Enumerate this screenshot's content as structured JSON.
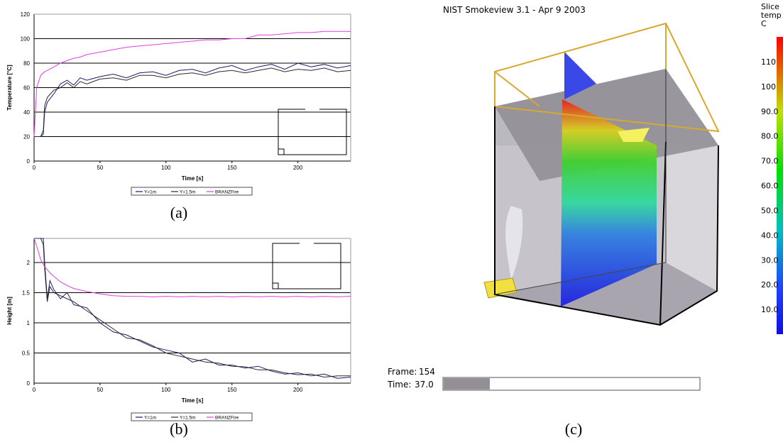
{
  "chart_data": [
    {
      "type": "line",
      "caption": "(a)",
      "y_label": "Temperature [°C]",
      "x_label": "Time [s]",
      "xlim": [
        0,
        240
      ],
      "xticks": [
        0,
        50,
        100,
        150,
        200
      ],
      "ylim": [
        0,
        120
      ],
      "yticks": [
        0,
        20,
        40,
        60,
        80,
        100,
        120
      ],
      "grid": true,
      "x": [
        0,
        2,
        5,
        7,
        8,
        10,
        15,
        20,
        25,
        30,
        35,
        40,
        50,
        60,
        70,
        80,
        90,
        100,
        110,
        120,
        130,
        140,
        150,
        160,
        170,
        180,
        190,
        200,
        210,
        220,
        230,
        240
      ],
      "series": [
        {
          "name": "Y=1m",
          "color": "#1c1c6a",
          "values": [
            20,
            20,
            20,
            22,
            40,
            48,
            55,
            63,
            66,
            62,
            68,
            66,
            69,
            71,
            68,
            72,
            73,
            70,
            74,
            75,
            72,
            76,
            78,
            74,
            77,
            79,
            75,
            80,
            77,
            79,
            76,
            78
          ]
        },
        {
          "name": "Y=1.5m",
          "color": "#2a2a2a",
          "values": [
            20,
            20,
            20,
            25,
            45,
            52,
            58,
            60,
            64,
            60,
            65,
            63,
            67,
            68,
            66,
            70,
            70,
            68,
            71,
            72,
            70,
            73,
            74,
            72,
            74,
            76,
            73,
            75,
            74,
            76,
            73,
            74
          ]
        },
        {
          "name": "BRANZFire",
          "color": "#e03ee0",
          "values": [
            20,
            60,
            70,
            72,
            73,
            74,
            77,
            80,
            82,
            84,
            85,
            87,
            89,
            91,
            93,
            94,
            95,
            96,
            97,
            98,
            99,
            99,
            100,
            100,
            103,
            103,
            104,
            105,
            105,
            106,
            106,
            106
          ]
        }
      ]
    },
    {
      "type": "line",
      "caption": "(b)",
      "y_label": "Height [m]",
      "x_label": "Time [s]",
      "xlim": [
        0,
        240
      ],
      "xticks": [
        0,
        50,
        100,
        150,
        200
      ],
      "ylim": [
        0,
        2.4
      ],
      "yticks": [
        0,
        0.5,
        1,
        1.5,
        2
      ],
      "grid": true,
      "x": [
        0,
        3,
        5,
        7,
        8,
        10,
        12,
        15,
        20,
        25,
        30,
        40,
        50,
        60,
        70,
        80,
        90,
        100,
        110,
        120,
        130,
        140,
        150,
        160,
        170,
        180,
        190,
        200,
        210,
        220,
        230,
        240
      ],
      "series": [
        {
          "name": "Y=1m",
          "color": "#1c1c6a",
          "values": [
            2.4,
            2.4,
            2.4,
            2.4,
            2.0,
            1.4,
            1.7,
            1.55,
            1.4,
            1.5,
            1.3,
            1.25,
            1.0,
            0.85,
            0.8,
            0.7,
            0.6,
            0.55,
            0.5,
            0.35,
            0.4,
            0.3,
            0.3,
            0.25,
            0.28,
            0.2,
            0.15,
            0.17,
            0.12,
            0.15,
            0.08,
            0.1
          ]
        },
        {
          "name": "Y=1.5m",
          "color": "#2a2a2a",
          "values": [
            2.4,
            2.4,
            2.4,
            2.3,
            1.9,
            1.35,
            1.6,
            1.5,
            1.45,
            1.4,
            1.35,
            1.2,
            1.05,
            0.9,
            0.75,
            0.72,
            0.62,
            0.5,
            0.45,
            0.4,
            0.35,
            0.33,
            0.28,
            0.27,
            0.22,
            0.22,
            0.17,
            0.14,
            0.15,
            0.1,
            0.12,
            0.12
          ]
        },
        {
          "name": "BRANZFire",
          "color": "#e03ee0",
          "values": [
            2.4,
            2.2,
            2.05,
            1.97,
            1.93,
            1.88,
            1.83,
            1.77,
            1.68,
            1.62,
            1.57,
            1.52,
            1.48,
            1.45,
            1.44,
            1.44,
            1.43,
            1.44,
            1.43,
            1.44,
            1.43,
            1.44,
            1.43,
            1.44,
            1.43,
            1.44,
            1.43,
            1.44,
            1.43,
            1.44,
            1.43,
            1.44
          ]
        }
      ]
    }
  ],
  "smokeview": {
    "title": "NIST Smokeview 3.1 - Apr  9 2003",
    "caption": "(c)",
    "colorbar_title": [
      "Slice",
      "temp",
      "C"
    ],
    "clim": [
      0,
      120
    ],
    "colorbar_ticks": [
      {
        "value": 110,
        "label": "110"
      },
      {
        "value": 100,
        "label": "100"
      },
      {
        "value": 90,
        "label": "90.0"
      },
      {
        "value": 80,
        "label": "80.0"
      },
      {
        "value": 70,
        "label": "70.0"
      },
      {
        "value": 60,
        "label": "60.0"
      },
      {
        "value": 50,
        "label": "50.0"
      },
      {
        "value": 40,
        "label": "40.0"
      },
      {
        "value": 30,
        "label": "30.0"
      },
      {
        "value": 20,
        "label": "20.0"
      },
      {
        "value": 10,
        "label": "10.0"
      }
    ],
    "frame_label": "Frame:",
    "frame": 154,
    "time_label": "Time:",
    "time": "37.0"
  }
}
